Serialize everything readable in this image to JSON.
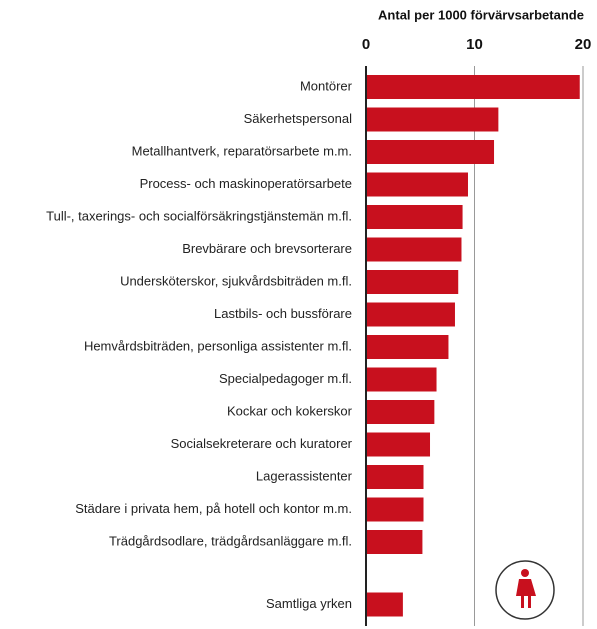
{
  "chart_data": {
    "type": "bar",
    "orientation": "horizontal",
    "title": "Antal per 1000 förvärvsarbetande",
    "categories": [
      "Montörer",
      "Säkerhetspersonal",
      "Metallhantverk, reparatörsarbete m.m.",
      "Process- och maskinoperatörsarbete",
      "Tull-, taxerings- och socialförsäkringstjänstemän m.fl.",
      "Brevbärare och brevsorterare",
      "Undersköterskor, sjukvårdsbiträden m.fl.",
      "Lastbils- och bussförare",
      "Hemvårdsbiträden, personliga assistenter m.fl.",
      "Specialpedagoger m.fl.",
      "Kockar och kokerskor",
      "Socialsekreterare och kuratorer",
      "Lagerassistenter",
      "Städare i privata hem, på hotell och kontor m.m.",
      "Trädgårdsodlare, trädgårdsanläggare m.fl.",
      "Samtliga yrken"
    ],
    "values": [
      19.7,
      12.2,
      11.8,
      9.4,
      8.9,
      8.8,
      8.5,
      8.2,
      7.6,
      6.5,
      6.3,
      5.9,
      5.3,
      5.3,
      5.2,
      3.4
    ],
    "color": "#c8101e",
    "xlim": [
      0,
      20
    ],
    "xticks": [
      0,
      10,
      20
    ],
    "grid": true
  }
}
